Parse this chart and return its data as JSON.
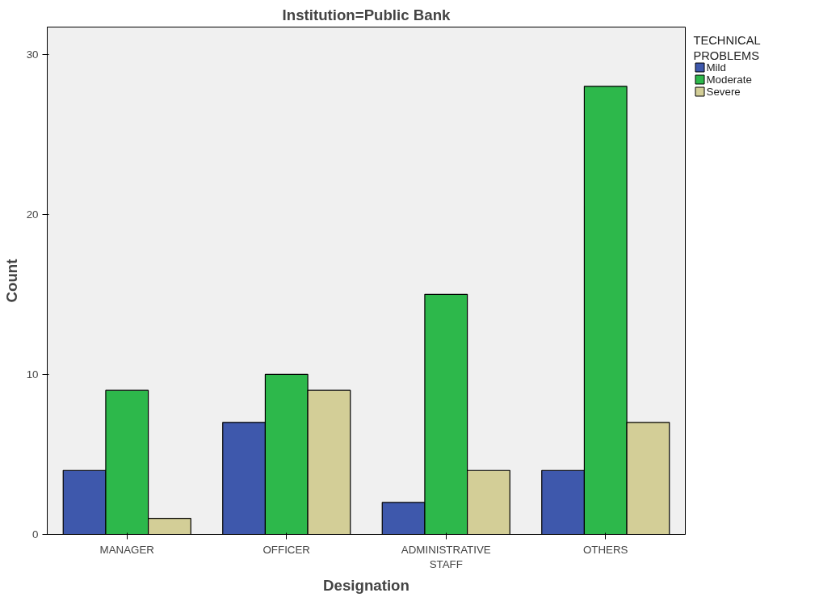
{
  "chart_data": {
    "type": "bar",
    "title": "Institution=Public Bank",
    "xlabel": "Designation",
    "ylabel": "Count",
    "legend_title": "TECHNICAL PROBLEMS",
    "categories": [
      "MANAGER",
      "OFFICER",
      "ADMINISTRATIVE STAFF",
      "OTHERS"
    ],
    "series": [
      {
        "name": "Mild",
        "color": "#3e58ac",
        "values": [
          4,
          7,
          2,
          4
        ]
      },
      {
        "name": "Moderate",
        "color": "#2db84b",
        "values": [
          9,
          10,
          15,
          28
        ]
      },
      {
        "name": "Severe",
        "color": "#d3ce97",
        "values": [
          1,
          9,
          4,
          7
        ]
      }
    ],
    "ylim": [
      0,
      31.7
    ],
    "yticks": [
      0,
      10,
      20,
      30
    ],
    "grid": false,
    "legend": "top right"
  }
}
